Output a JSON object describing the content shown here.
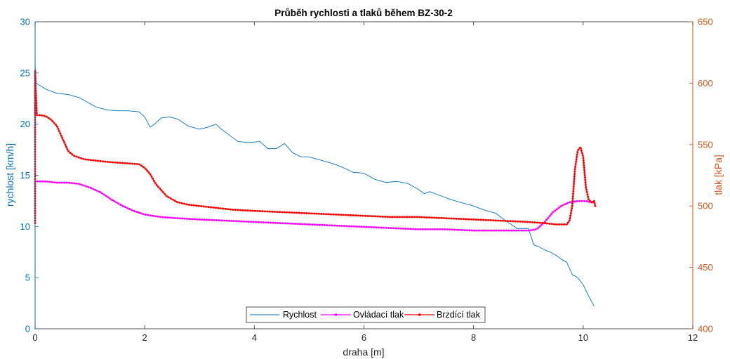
{
  "chart_data": {
    "type": "line",
    "title": "Průběh rychlosti a tlaků během BZ-30-2",
    "xlabel": "draha [m]",
    "ylabel_left": "rychlost [km/h]",
    "ylabel_right": "tlak [kPa]",
    "xlim": [
      0,
      12
    ],
    "ylim_left": [
      0,
      30
    ],
    "ylim_right": [
      400,
      650
    ],
    "x_ticks": [
      "0",
      "2",
      "4",
      "6",
      "8",
      "10",
      "12"
    ],
    "y_left_ticks": [
      "0",
      "5",
      "10",
      "15",
      "20",
      "25",
      "30"
    ],
    "y_right_ticks": [
      "400",
      "450",
      "500",
      "550",
      "600",
      "650"
    ],
    "grid": false,
    "legend_placement": "bottom-center",
    "colors": {
      "left_axis": "#0072BD",
      "right_axis": "#D95319",
      "rychlost": "#0072BD",
      "ovladaci": "#FF00FF",
      "brzdici": "#FF0000"
    },
    "series": [
      {
        "name": "Rychlost",
        "axis": "left",
        "marker": "none",
        "x": [
          0,
          0.02,
          0.05,
          0.2,
          0.4,
          0.6,
          0.8,
          1.0,
          1.1,
          1.3,
          1.5,
          1.7,
          1.9,
          2.0,
          2.1,
          2.2,
          2.3,
          2.45,
          2.6,
          2.8,
          3.0,
          3.15,
          3.3,
          3.4,
          3.55,
          3.7,
          3.9,
          4.1,
          4.25,
          4.4,
          4.55,
          4.7,
          4.85,
          5.0,
          5.2,
          5.4,
          5.6,
          5.8,
          6.0,
          6.2,
          6.4,
          6.6,
          6.8,
          7.0,
          7.1,
          7.2,
          7.4,
          7.6,
          7.8,
          8.0,
          8.2,
          8.4,
          8.6,
          8.8,
          9.0,
          9.1,
          9.2,
          9.3,
          9.4,
          9.5,
          9.6,
          9.7,
          9.8,
          9.9,
          10.0,
          10.1,
          10.2
        ],
        "values": [
          25.8,
          24.0,
          23.9,
          23.4,
          23.0,
          22.9,
          22.6,
          22.0,
          21.7,
          21.4,
          21.3,
          21.3,
          21.2,
          20.7,
          19.7,
          20.1,
          20.6,
          20.7,
          20.5,
          19.8,
          19.5,
          19.7,
          20.0,
          19.5,
          18.9,
          18.3,
          18.2,
          18.3,
          17.6,
          17.6,
          18.1,
          17.2,
          16.8,
          16.8,
          16.5,
          16.2,
          15.8,
          15.3,
          15.2,
          14.6,
          14.3,
          14.4,
          14.2,
          13.6,
          13.2,
          13.4,
          13.0,
          12.6,
          12.3,
          12.0,
          11.6,
          11.3,
          10.5,
          9.8,
          9.8,
          8.2,
          8.0,
          7.7,
          7.5,
          7.2,
          6.8,
          6.5,
          5.3,
          5.0,
          4.3,
          3.2,
          2.2
        ]
      },
      {
        "name": "Ovládací tlak",
        "axis": "right",
        "marker": "dot",
        "x": [
          0,
          0.2,
          0.4,
          0.6,
          0.8,
          1.0,
          1.2,
          1.4,
          1.6,
          1.8,
          2.0,
          2.3,
          2.6,
          3.0,
          3.5,
          4.0,
          4.5,
          5.0,
          5.5,
          6.0,
          6.5,
          7.0,
          7.5,
          8.0,
          8.5,
          8.8,
          9.0,
          9.15,
          9.3,
          9.45,
          9.6,
          9.75,
          9.9,
          10.05,
          10.15,
          10.2
        ],
        "values": [
          520,
          520,
          519,
          519,
          518,
          515,
          511,
          505,
          500,
          496,
          493,
          491,
          490,
          489,
          488,
          487,
          486,
          485,
          484,
          483,
          482,
          481,
          481,
          480,
          480,
          480,
          480,
          481,
          487,
          495,
          500,
          503,
          504,
          504,
          503,
          503
        ]
      },
      {
        "name": "Brzdící tlak",
        "axis": "right",
        "marker": "dot",
        "x": [
          0,
          0.0,
          0.0,
          0.0,
          0.03,
          0.1,
          0.2,
          0.3,
          0.4,
          0.5,
          0.6,
          0.7,
          0.9,
          1.1,
          1.3,
          1.6,
          1.9,
          2.0,
          2.1,
          2.2,
          2.4,
          2.6,
          2.8,
          3.2,
          3.6,
          4.0,
          4.5,
          5.0,
          5.5,
          6.0,
          6.5,
          7.0,
          7.5,
          8.0,
          8.5,
          9.0,
          9.3,
          9.5,
          9.7,
          9.75,
          9.8,
          9.85,
          9.9,
          9.95,
          10.0,
          10.05,
          10.1,
          10.15,
          10.2,
          10.22
        ],
        "values": [
          486,
          600,
          575,
          610,
          574,
          574,
          573,
          570,
          565,
          555,
          545,
          541,
          538,
          537,
          536,
          535,
          534,
          531,
          526,
          518,
          508,
          503,
          501,
          499,
          497,
          496,
          495,
          494,
          493,
          492,
          491,
          491,
          490,
          489,
          488,
          487,
          486,
          485,
          485,
          488,
          500,
          530,
          545,
          548,
          540,
          515,
          505,
          503,
          504,
          500
        ]
      }
    ]
  }
}
